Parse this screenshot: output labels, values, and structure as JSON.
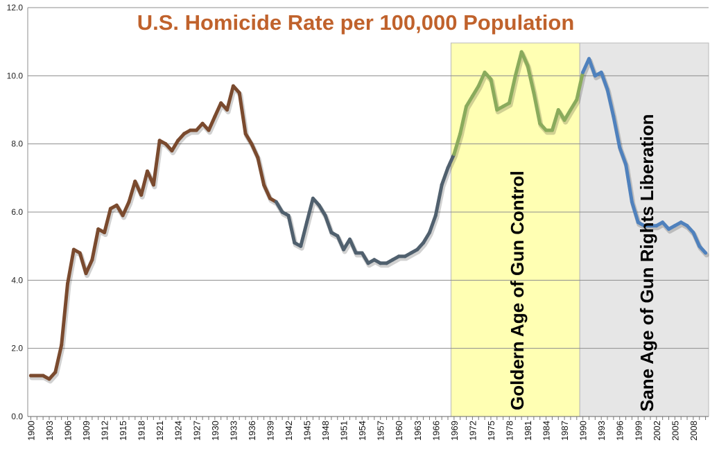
{
  "chart_data": {
    "type": "line",
    "title": "U.S. Homicide Rate per 100,000 Population",
    "xlabel": "",
    "ylabel": "",
    "ylim": [
      0,
      12
    ],
    "xlim": [
      1900,
      2010
    ],
    "grid": true,
    "y_ticks": [
      "0.0",
      "2.0",
      "4.0",
      "6.0",
      "8.0",
      "10.0",
      "12.0"
    ],
    "x_ticks": [
      "1900",
      "1903",
      "1906",
      "1909",
      "1912",
      "1915",
      "1918",
      "1921",
      "1924",
      "1927",
      "1930",
      "1933",
      "1936",
      "1939",
      "1942",
      "1945",
      "1948",
      "1951",
      "1954",
      "1957",
      "1960",
      "1963",
      "1966",
      "1969",
      "1972",
      "1975",
      "1978",
      "1981",
      "1984",
      "1987",
      "1990",
      "1993",
      "1996",
      "1999",
      "2002",
      "2005",
      "2008"
    ],
    "series": [
      {
        "x": [
          1900,
          1901,
          1902,
          1903,
          1904,
          1905,
          1906,
          1907,
          1908,
          1909,
          1910,
          1911,
          1912,
          1913,
          1914,
          1915,
          1916,
          1917,
          1918,
          1919,
          1920,
          1921,
          1922,
          1923,
          1924,
          1925,
          1926,
          1927,
          1928,
          1929,
          1930,
          1931,
          1932,
          1933,
          1934,
          1935,
          1936,
          1937,
          1938,
          1939,
          1940,
          1941,
          1942,
          1943,
          1944,
          1945,
          1946,
          1947,
          1948,
          1949,
          1950,
          1951,
          1952,
          1953,
          1954,
          1955,
          1956,
          1957,
          1958,
          1959,
          1960,
          1961,
          1962,
          1963,
          1964,
          1965,
          1966,
          1967,
          1968,
          1969,
          1970,
          1971,
          1972,
          1973,
          1974,
          1975,
          1976,
          1977,
          1978,
          1979,
          1980,
          1981,
          1982,
          1983,
          1984,
          1985,
          1986,
          1987,
          1988,
          1989,
          1990,
          1991,
          1992,
          1993,
          1994,
          1995,
          1996,
          1997,
          1998,
          1999,
          2000,
          2001,
          2002,
          2003,
          2004,
          2005,
          2006,
          2007,
          2008,
          2009,
          2010
        ],
        "values": [
          1.2,
          1.2,
          1.2,
          1.1,
          1.3,
          2.1,
          3.9,
          4.9,
          4.8,
          4.2,
          4.6,
          5.5,
          5.4,
          6.1,
          6.2,
          5.9,
          6.3,
          6.9,
          6.5,
          7.2,
          6.8,
          8.1,
          8.0,
          7.8,
          8.1,
          8.3,
          8.4,
          8.4,
          8.6,
          8.4,
          8.8,
          9.2,
          9.0,
          9.7,
          9.5,
          8.3,
          8.0,
          7.6,
          6.8,
          6.4,
          6.3,
          6.0,
          5.9,
          5.1,
          5.0,
          5.7,
          6.4,
          6.2,
          5.9,
          5.4,
          5.3,
          4.9,
          5.2,
          4.8,
          4.8,
          4.5,
          4.6,
          4.5,
          4.5,
          4.6,
          4.7,
          4.7,
          4.8,
          4.9,
          5.1,
          5.4,
          5.9,
          6.8,
          7.3,
          7.7,
          8.3,
          9.1,
          9.4,
          9.7,
          10.1,
          9.9,
          9.0,
          9.1,
          9.2,
          10.0,
          10.7,
          10.3,
          9.5,
          8.6,
          8.4,
          8.4,
          9.0,
          8.7,
          9.0,
          9.3,
          10.1,
          10.5,
          10.0,
          10.1,
          9.6,
          8.8,
          7.9,
          7.4,
          6.3,
          5.7,
          5.6,
          5.6,
          5.6,
          5.7,
          5.5,
          5.6,
          5.7,
          5.6,
          5.4,
          5.0,
          4.8
        ],
        "colors": {
          "early": "#7a4a2e",
          "mid": "#50606e",
          "gun_control": "#8aab5c",
          "late": "#4f81bd"
        }
      }
    ],
    "bands": [
      {
        "label": "Goldern Age of Gun Control",
        "x_start": 1968.5,
        "x_end": 1989.5,
        "color": "#ffffb3"
      },
      {
        "label": "Sane Age of Gun Rights Liberation",
        "x_start": 1989.5,
        "x_end": 2010.5,
        "color": "#e6e6e6"
      }
    ]
  }
}
